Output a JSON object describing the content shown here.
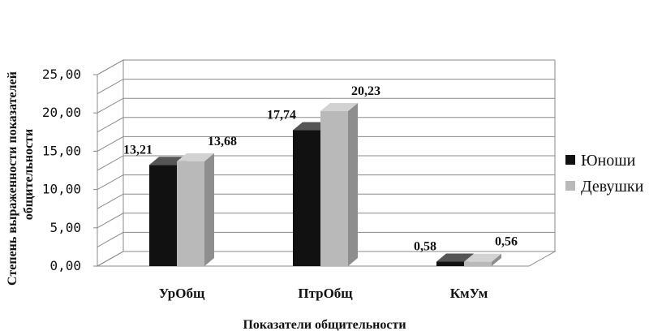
{
  "chart_data": {
    "type": "bar",
    "categories": [
      "УрОбщ",
      "ПтрОбщ",
      "КмУм"
    ],
    "series": [
      {
        "name": "Юноши",
        "values": [
          13.21,
          17.74,
          0.58
        ],
        "color": "#111111"
      },
      {
        "name": "Девушки",
        "values": [
          13.68,
          20.23,
          0.56
        ],
        "color": "#b9b9b9"
      }
    ],
    "data_labels": [
      [
        "13,21",
        "17,74",
        "0,58"
      ],
      [
        "13,68",
        "20,23",
        "0,56"
      ]
    ],
    "y_ticks": [
      "0,00",
      "5,00",
      "10,00",
      "15,00",
      "20,00",
      "25,00"
    ],
    "ylim": [
      0,
      25
    ],
    "ylabel_lines": [
      "Степень выраженности показателей",
      "общительности"
    ],
    "xlabel": "Показатели общительности",
    "grid": true,
    "style": "3d",
    "legend_position": "right"
  }
}
